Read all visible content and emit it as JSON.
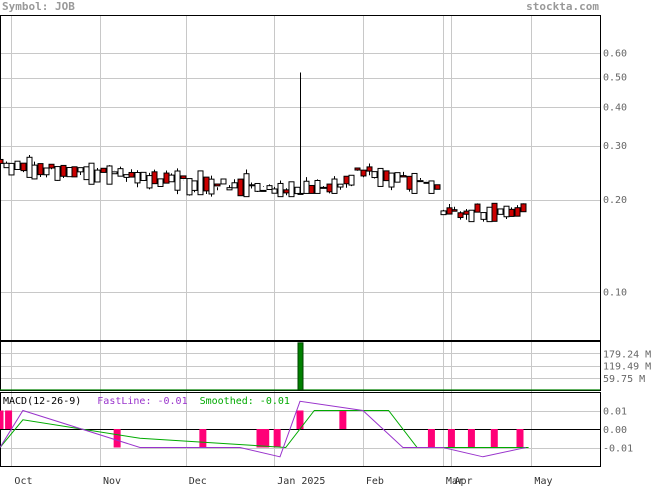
{
  "header": {
    "symbol": "Symbol: JOB",
    "site": "stockta.com"
  },
  "chart_data": [
    {
      "panel": "price",
      "type": "candlestick",
      "scale": "log",
      "ylim": [
        0.07,
        0.8
      ],
      "y_ticks": [
        0.1,
        0.2,
        0.3,
        0.4,
        0.5,
        0.6
      ],
      "y_tick_labels": [
        "0.10",
        "0.20",
        "0.30",
        "0.40",
        "0.50",
        "0.60"
      ],
      "x_ticks": [
        "Oct",
        "Nov",
        "Dec",
        "Jan 2025",
        "Feb",
        "Mar",
        "Apr",
        "May"
      ],
      "grid": true,
      "segments": [
        {
          "name": "",
          "start_date": "2024-09-27",
          "days": 105,
          "open": 0.265,
          "close": 0.215,
          "low": 0.205,
          "high": 0.28
        },
        {
          "name": "",
          "start_date": "2025-01-10",
          "days": 20,
          "open": 0.215,
          "close": 0.235,
          "low": 0.21,
          "high": 0.52
        },
        {
          "name": "",
          "start_date": "2025-01-30",
          "days": 30,
          "open": 0.255,
          "close": 0.22,
          "low": 0.21,
          "high": 0.27
        },
        {
          "name": "",
          "start_date": "2025-03-01",
          "days": 30,
          "open": 0.185,
          "close": 0.19,
          "low": 0.17,
          "high": 0.195
        }
      ],
      "up_color": "#ffffff",
      "down_color": "#cc0000"
    },
    {
      "panel": "volume",
      "type": "bar",
      "y_tick_labels": [
        "179.24 M",
        "119.49 M",
        "59.75 M"
      ],
      "ylim": [
        0,
        239
      ],
      "spike": {
        "date": "2025-01-10",
        "value": 230
      },
      "baseline": 0.5,
      "color": "#008000"
    },
    {
      "panel": "macd",
      "type": "line",
      "title": "MACD(12-26-9)",
      "fast_label": "FastLine: -0.01",
      "smooth_label": "Smoothed: -0.01",
      "fast_color": "#9933cc",
      "smooth_color": "#00aa00",
      "hist_color": "#ff0077",
      "y_tick_labels": [
        "0.01",
        "0.00",
        "-0.01"
      ],
      "ylim": [
        -0.02,
        0.02
      ],
      "fast": [
        {
          "date": "2024-09-27",
          "v": -0.01
        },
        {
          "date": "2024-10-05",
          "v": 0.01
        },
        {
          "date": "2024-11-15",
          "v": -0.01
        },
        {
          "date": "2024-12-20",
          "v": -0.01
        },
        {
          "date": "2025-01-03",
          "v": -0.015
        },
        {
          "date": "2025-01-10",
          "v": 0.015
        },
        {
          "date": "2025-02-01",
          "v": 0.01
        },
        {
          "date": "2025-02-15",
          "v": -0.01
        },
        {
          "date": "2025-03-01",
          "v": -0.01
        },
        {
          "date": "2025-03-15",
          "v": -0.015
        },
        {
          "date": "2025-03-30",
          "v": -0.01
        }
      ],
      "smooth": [
        {
          "date": "2024-09-27",
          "v": -0.01
        },
        {
          "date": "2024-10-05",
          "v": 0.005
        },
        {
          "date": "2024-11-15",
          "v": -0.005
        },
        {
          "date": "2025-01-05",
          "v": -0.01
        },
        {
          "date": "2025-01-15",
          "v": 0.01
        },
        {
          "date": "2025-02-10",
          "v": 0.01
        },
        {
          "date": "2025-02-20",
          "v": -0.01
        },
        {
          "date": "2025-03-31",
          "v": -0.01
        }
      ],
      "histogram": [
        {
          "date": "2024-09-27",
          "v": 0.01
        },
        {
          "date": "2024-09-30",
          "v": 0.01
        },
        {
          "date": "2024-11-07",
          "v": -0.01
        },
        {
          "date": "2024-12-07",
          "v": -0.01
        },
        {
          "date": "2024-12-27",
          "v": -0.01
        },
        {
          "date": "2024-12-29",
          "v": -0.01
        },
        {
          "date": "2025-01-02",
          "v": -0.01
        },
        {
          "date": "2025-01-10",
          "v": 0.01
        },
        {
          "date": "2025-01-25",
          "v": 0.01
        },
        {
          "date": "2025-02-25",
          "v": -0.01
        },
        {
          "date": "2025-03-04",
          "v": -0.01
        },
        {
          "date": "2025-03-11",
          "v": -0.01
        },
        {
          "date": "2025-03-19",
          "v": -0.01
        },
        {
          "date": "2025-03-28",
          "v": -0.01
        }
      ]
    }
  ]
}
